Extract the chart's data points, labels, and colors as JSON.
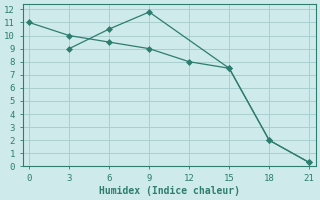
{
  "line1": {
    "x": [
      0,
      3,
      6,
      9,
      12,
      15,
      18,
      21
    ],
    "y": [
      11,
      10.0,
      9.5,
      9.0,
      8.0,
      7.5,
      2.0,
      0.3
    ]
  },
  "line2": {
    "x": [
      3,
      6,
      9,
      15,
      18,
      21
    ],
    "y": [
      9.0,
      10.5,
      11.8,
      7.5,
      2.0,
      0.3
    ]
  },
  "xlabel": "Humidex (Indice chaleur)",
  "xlim": [
    -0.5,
    21.5
  ],
  "ylim": [
    0,
    12.4
  ],
  "xticks": [
    0,
    3,
    6,
    9,
    12,
    15,
    18,
    21
  ],
  "yticks": [
    0,
    1,
    2,
    3,
    4,
    5,
    6,
    7,
    8,
    9,
    10,
    11,
    12
  ],
  "bg_color": "#ceeaea",
  "grid_color": "#aacece",
  "line_color": "#2e7d6e"
}
